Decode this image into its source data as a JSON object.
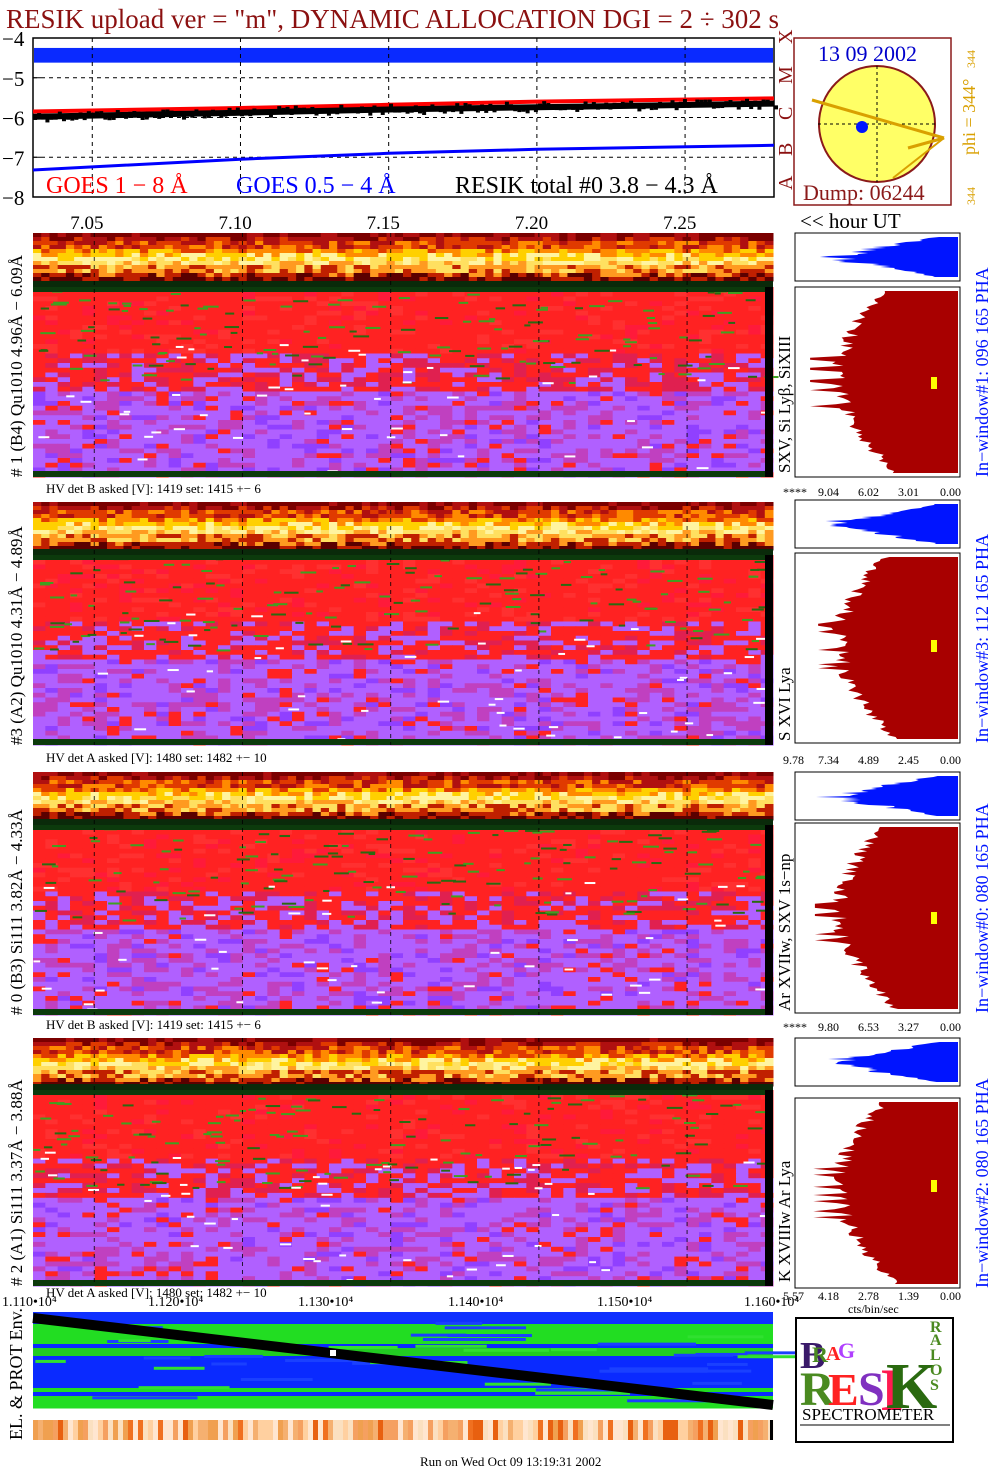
{
  "title": "RESIK upload ver = \"m\", DYNAMIC ALLOCATION  DGI =   2 ÷ 302 s",
  "footer": "Run on Wed Oct 09 13:19:31 2002",
  "colors": {
    "title": "#8b1010",
    "goes_long": "#ff0000",
    "goes_short": "#0000ff",
    "resik_total": "#000000",
    "band": "#0a2aff",
    "pha_blue": "#0014ff",
    "pha_red": "#a80000",
    "sun_disk": "#ffff66",
    "sun_rim": "#8b1a1a",
    "sun_date": "#0000cc",
    "phi_text": "#d9a000",
    "spectro_red": "#ff2222",
    "spectro_violet": "#b060ff"
  },
  "goes": {
    "y_tick_labels": [
      "−4",
      "−5",
      "−6",
      "−7",
      "−8"
    ],
    "class_letters": [
      "X",
      "M",
      "C",
      "B",
      "A"
    ],
    "legend_goes_long": "GOES 1 − 8 Å",
    "legend_goes_short": "GOES 0.5 − 4 Å",
    "legend_resik": "RESIK total #0  3.8 − 4.3 Å",
    "time_ticks": [
      "7.05",
      "7.10",
      "7.15",
      "7.20",
      "7.25"
    ],
    "time_axis_label": "<< hour UT"
  },
  "chart_data": [
    {
      "type": "line",
      "title": "",
      "ylabel": "",
      "ylim": [
        -8,
        -4
      ],
      "x_range_hours": [
        7.03,
        7.28
      ],
      "series": [
        {
          "name": "GOES 1 − 8 Å",
          "x": [
            7.03,
            7.1,
            7.15,
            7.2,
            7.28
          ],
          "values": [
            -5.85,
            -5.76,
            -5.68,
            -5.6,
            -5.52
          ]
        },
        {
          "name": "GOES 0.5 − 4 Å",
          "x": [
            7.03,
            7.1,
            7.15,
            7.2,
            7.28
          ],
          "values": [
            -7.32,
            -7.05,
            -6.9,
            -6.8,
            -6.7
          ]
        },
        {
          "name": "RESIK total #0  3.8 − 4.3 Å",
          "x": [
            7.03,
            7.1,
            7.15,
            7.2,
            7.28
          ],
          "values": [
            -5.98,
            -5.88,
            -5.8,
            -5.74,
            -5.65
          ]
        }
      ]
    },
    {
      "type": "heatmap",
      "title": "",
      "x_tick_labels": [
        "1.110•10⁴",
        "1.120•10⁴",
        "1.130•10⁴",
        "1.140•10⁴",
        "1.150•10⁴",
        "1.160•10⁴"
      ]
    }
  ],
  "sun": {
    "date": "13 09 2002",
    "dump": "Dump: 06244",
    "phi": "phi = 344°",
    "num_top": "344",
    "num_bottom": "344"
  },
  "panels": [
    {
      "label": "# 1 (B4) Qu1010 4.96Å − 6.09Å",
      "lines": "SXV, Si Lyβ, SiXIII",
      "hv": "HV det B asked [V]:  1419 set:  1415 +−   6",
      "window": "In−window#1:  096 165 PHA",
      "scale": [
        "****",
        "9.04",
        "6.02",
        "3.01",
        "0.00"
      ],
      "pha_peak": 0.93
    },
    {
      "label": "#3 (A2) Qu1010  4.31Å − 4.89Å",
      "lines": "S XVI Lya",
      "hv": "HV det A asked [V]:  1480 set:  1482 +−   10",
      "window": "In−window#3:  112 165 PHA",
      "scale": [
        "9.78",
        "7.34",
        "4.89",
        "2.45",
        "0.00"
      ],
      "pha_peak": 0.88
    },
    {
      "label": "# 0 (B3) Si111  3.82Å − 4.33Å",
      "lines": "Ar XVIIw,  SXV 1s−np",
      "hv": "HV det B asked [V]:  1419 set:  1415 +−   6",
      "window": "In−window#0:  080 165 PHA",
      "scale": [
        "****",
        "9.80",
        "6.53",
        "3.27",
        "0.00"
      ],
      "pha_peak": 0.9
    },
    {
      "label": "# 2 (A1) Si111  3.37Å − 3.88Å",
      "lines": "K XVIIIw  Ar Lya",
      "hv": "HV det A asked [V]:  1480 set:  1482 +−   10",
      "window": "In−window#2:  080 165 PHA",
      "scale": [
        "5.57",
        "4.18",
        "2.78",
        "1.39",
        "0.00"
      ],
      "scale_unit": "cts/bin/sec",
      "pha_peak": 0.91
    }
  ],
  "env": {
    "label": "EL. & PROT Env."
  },
  "logo": {
    "letters": [
      "B",
      "R",
      "A",
      "G",
      "R",
      "E",
      "S",
      "I",
      "K",
      "S",
      "O",
      "L",
      "A",
      "R"
    ],
    "spectrometer": "SPECTROMETER"
  }
}
